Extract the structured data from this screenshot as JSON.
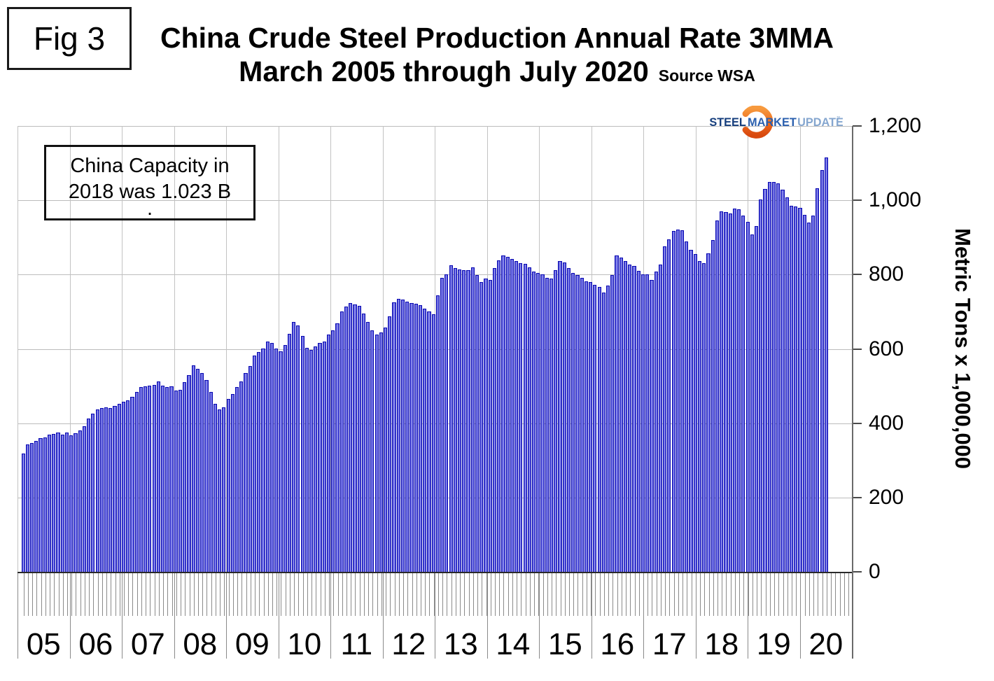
{
  "fig_label": "Fig 3",
  "title": {
    "line1": "China Crude Steel Production Annual Rate 3MMA",
    "line2": "March 2005 through July 2020",
    "source": "Source WSA"
  },
  "annotation": {
    "line1": "China Capacity in",
    "line2": "2018 was 1.023 B",
    "line3": "."
  },
  "logo": {
    "word1": "STEEL",
    "word2": "MARKET",
    "word3": "UPDATE",
    "trademark": "™",
    "orange": "#ed6a1e",
    "navy": "#143d7c",
    "blue": "#2a5fae",
    "light_blue": "#85a6cf"
  },
  "y_axis": {
    "label": "Metric Tons x 1,000,000",
    "ticks": [
      "0",
      "200",
      "400",
      "600",
      "800",
      "1,000",
      "1,200"
    ]
  },
  "x_axis": {
    "years": [
      "05",
      "06",
      "07",
      "08",
      "09",
      "10",
      "11",
      "12",
      "13",
      "14",
      "15",
      "16",
      "17",
      "18",
      "19",
      "20"
    ]
  },
  "chart_data": {
    "type": "bar",
    "title": "China Crude Steel Production Annual Rate 3MMA",
    "subtitle": "March 2005 through July 2020",
    "source": "Source WSA",
    "ylabel": "Metric Tons x 1,000,000",
    "frequency": "monthly",
    "start": "2005-03",
    "end": "2020-07",
    "ylim": [
      0,
      1200
    ],
    "y_tick_step": 200,
    "grid": true,
    "bar_color": "#5b5be4",
    "bar_border_color": "#0a0ab2",
    "x_group_labels": [
      "05",
      "06",
      "07",
      "08",
      "09",
      "10",
      "11",
      "12",
      "13",
      "14",
      "15",
      "16",
      "17",
      "18",
      "19",
      "20"
    ],
    "series": [
      {
        "name": "China crude steel production, annualized 3-month moving average (million metric tons)",
        "values": [
          318,
          343,
          347,
          352,
          360,
          362,
          369,
          371,
          375,
          369,
          375,
          368,
          373,
          380,
          392,
          412,
          426,
          437,
          440,
          443,
          441,
          446,
          452,
          458,
          462,
          471,
          484,
          497,
          500,
          502,
          503,
          512,
          502,
          497,
          500,
          487,
          490,
          510,
          530,
          556,
          546,
          535,
          516,
          484,
          452,
          437,
          443,
          465,
          478,
          497,
          512,
          535,
          554,
          582,
          591,
          601,
          620,
          616,
          601,
          593,
          610,
          640,
          672,
          663,
          635,
          603,
          597,
          607,
          616,
          620,
          639,
          650,
          669,
          701,
          714,
          723,
          720,
          716,
          695,
          672,
          650,
          639,
          644,
          658,
          688,
          725,
          735,
          733,
          728,
          724,
          722,
          718,
          708,
          700,
          694,
          744,
          791,
          801,
          825,
          818,
          814,
          812,
          812,
          820,
          799,
          780,
          789,
          786,
          818,
          838,
          851,
          848,
          842,
          836,
          830,
          828,
          820,
          808,
          804,
          800,
          791,
          789,
          812,
          836,
          833,
          817,
          804,
          799,
          791,
          782,
          780,
          773,
          767,
          751,
          770,
          799,
          851,
          846,
          836,
          827,
          823,
          810,
          801,
          801,
          786,
          808,
          827,
          876,
          895,
          918,
          921,
          919,
          889,
          867,
          855,
          836,
          831,
          858,
          893,
          946,
          971,
          968,
          965,
          978,
          975,
          959,
          942,
          908,
          931,
          1002,
          1030,
          1049,
          1049,
          1045,
          1029,
          1008,
          986,
          984,
          980,
          961,
          940,
          959,
          1032,
          1082,
          1115
        ]
      }
    ]
  }
}
